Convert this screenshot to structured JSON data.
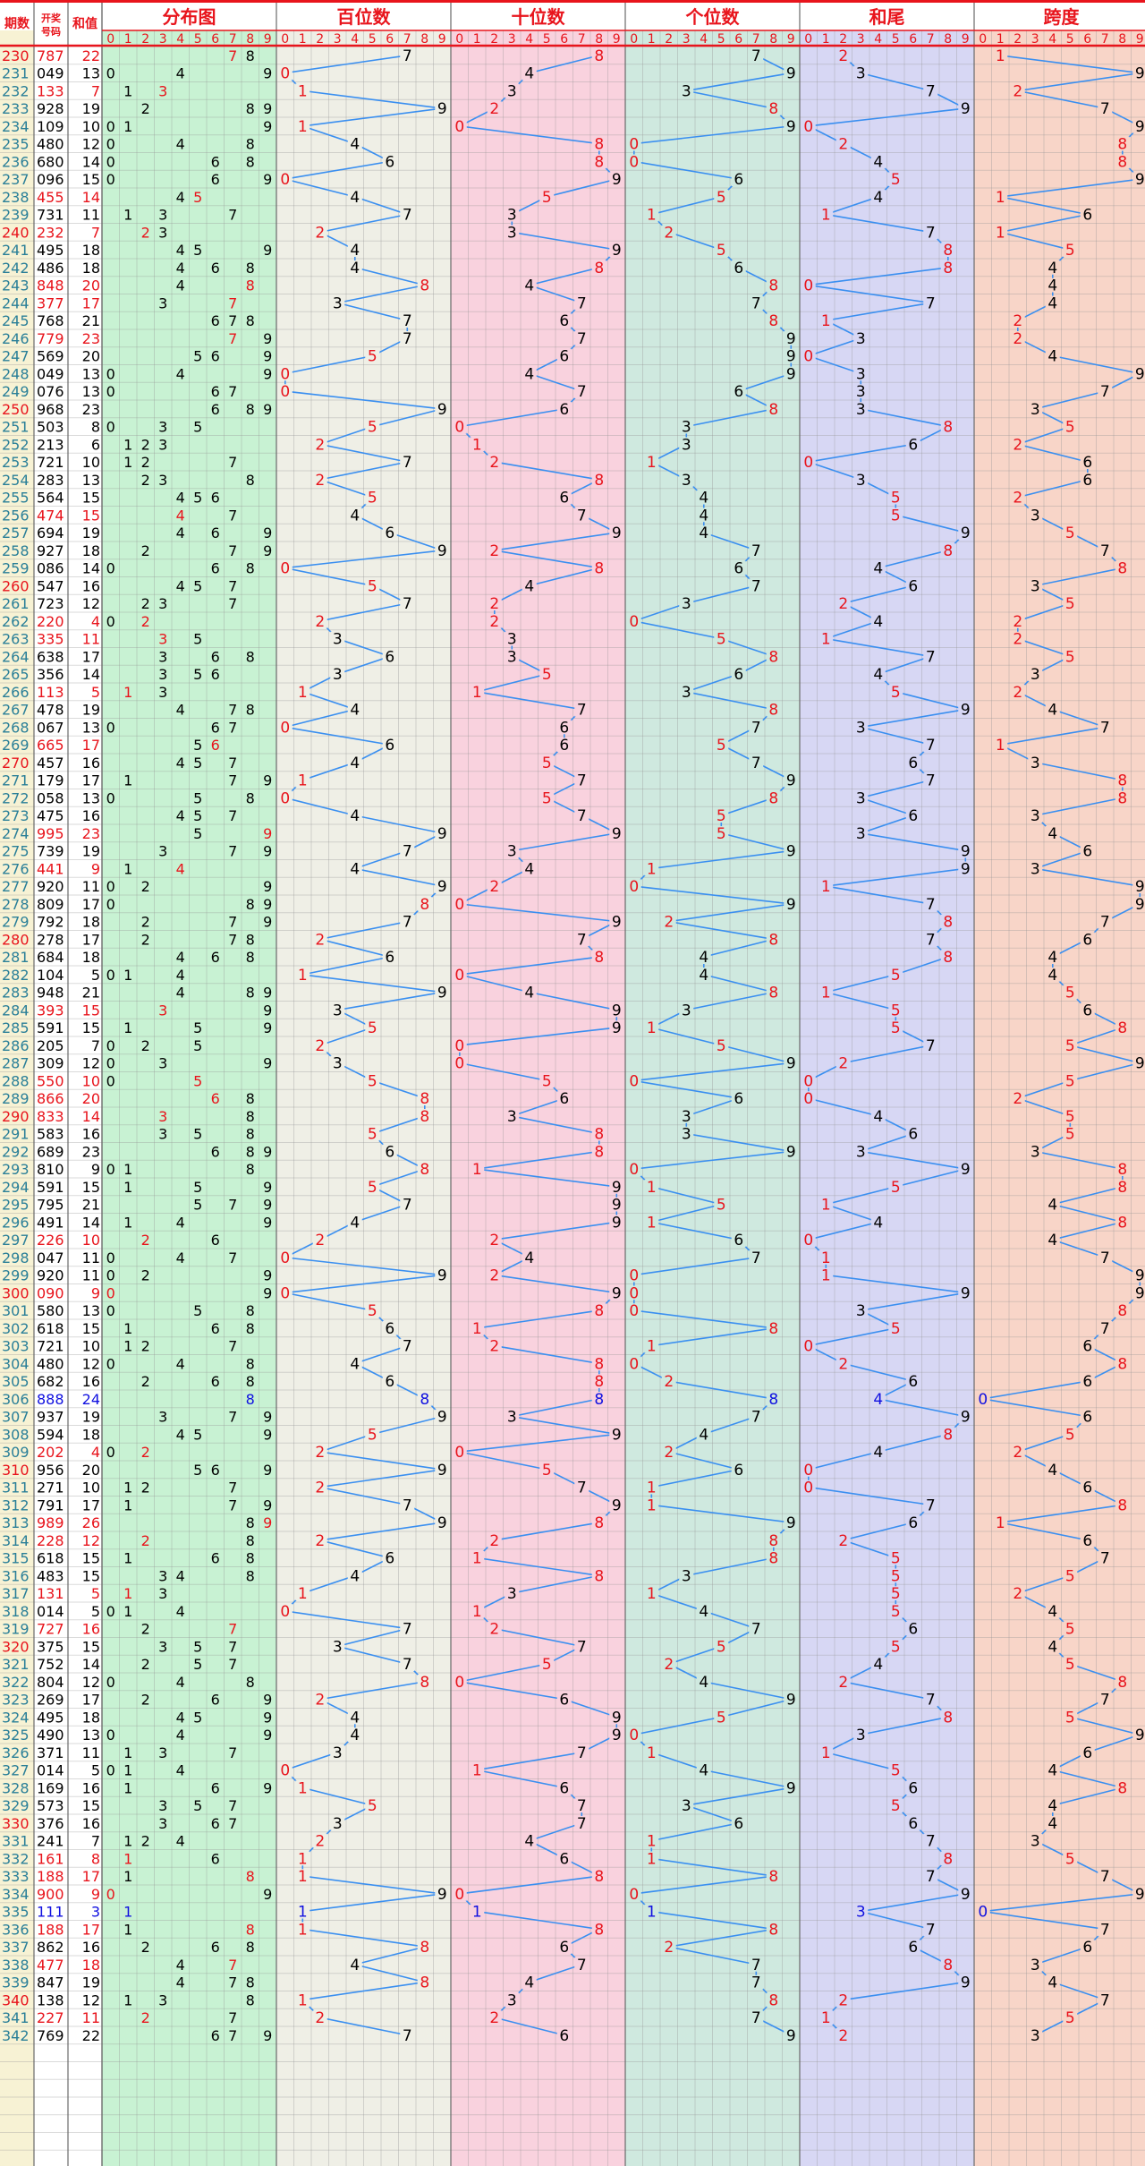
{
  "header": {
    "col_issue": "期数",
    "col_number_l1": "开奖",
    "col_number_l2": "号码",
    "col_sum": "和值",
    "sections": [
      "分布图",
      "百位数",
      "十位数",
      "个位数",
      "和尾",
      "跨度"
    ],
    "digits": [
      "0",
      "1",
      "2",
      "3",
      "4",
      "5",
      "6",
      "7",
      "8",
      "9"
    ]
  },
  "colors": {
    "issue_text": "#2a7f98",
    "highlight": "#e8141c",
    "blue_value": "#1010e0",
    "line": "#3a8ff0",
    "header_rule": "#e8141c",
    "sections_bg": [
      "#c8f2d3",
      "#efefe6",
      "#f9d2de",
      "#cfe9df",
      "#d7d7f4",
      "#f8d5c8"
    ],
    "left_bg": [
      "#f7f2d4",
      "#ffffff",
      "#ffffff"
    ]
  },
  "chart_data": {
    "type": "table",
    "title": "",
    "description_columns": [
      "期数",
      "开奖号码",
      "和值",
      "分布图",
      "百位数",
      "十位数",
      "个位数",
      "和尾",
      "跨度"
    ],
    "rows": [
      {
        "issue": "230",
        "number": "787",
        "sum": "22"
      },
      {
        "issue": "231",
        "number": "049",
        "sum": "13"
      },
      {
        "issue": "232",
        "number": "133",
        "sum": "7"
      },
      {
        "issue": "233",
        "number": "928",
        "sum": "19"
      },
      {
        "issue": "234",
        "number": "109",
        "sum": "10"
      },
      {
        "issue": "235",
        "number": "480",
        "sum": "12"
      },
      {
        "issue": "236",
        "number": "680",
        "sum": "14"
      },
      {
        "issue": "237",
        "number": "096",
        "sum": "15"
      },
      {
        "issue": "238",
        "number": "455",
        "sum": "14"
      },
      {
        "issue": "239",
        "number": "731",
        "sum": "11"
      },
      {
        "issue": "240",
        "number": "232",
        "sum": "7"
      },
      {
        "issue": "241",
        "number": "495",
        "sum": "18"
      },
      {
        "issue": "242",
        "number": "486",
        "sum": "18"
      },
      {
        "issue": "243",
        "number": "848",
        "sum": "20"
      },
      {
        "issue": "244",
        "number": "377",
        "sum": "17"
      },
      {
        "issue": "245",
        "number": "768",
        "sum": "21"
      },
      {
        "issue": "246",
        "number": "779",
        "sum": "23"
      },
      {
        "issue": "247",
        "number": "569",
        "sum": "20"
      },
      {
        "issue": "248",
        "number": "049",
        "sum": "13"
      },
      {
        "issue": "249",
        "number": "076",
        "sum": "13"
      },
      {
        "issue": "250",
        "number": "968",
        "sum": "23"
      },
      {
        "issue": "251",
        "number": "503",
        "sum": "8"
      },
      {
        "issue": "252",
        "number": "213",
        "sum": "6"
      },
      {
        "issue": "253",
        "number": "721",
        "sum": "10"
      },
      {
        "issue": "254",
        "number": "283",
        "sum": "13"
      },
      {
        "issue": "255",
        "number": "564",
        "sum": "15"
      },
      {
        "issue": "256",
        "number": "474",
        "sum": "15"
      },
      {
        "issue": "257",
        "number": "694",
        "sum": "19"
      },
      {
        "issue": "258",
        "number": "927",
        "sum": "18"
      },
      {
        "issue": "259",
        "number": "086",
        "sum": "14"
      },
      {
        "issue": "260",
        "number": "547",
        "sum": "16"
      },
      {
        "issue": "261",
        "number": "723",
        "sum": "12"
      },
      {
        "issue": "262",
        "number": "220",
        "sum": "4"
      },
      {
        "issue": "263",
        "number": "335",
        "sum": "11"
      },
      {
        "issue": "264",
        "number": "638",
        "sum": "17"
      },
      {
        "issue": "265",
        "number": "356",
        "sum": "14"
      },
      {
        "issue": "266",
        "number": "113",
        "sum": "5"
      },
      {
        "issue": "267",
        "number": "478",
        "sum": "19"
      },
      {
        "issue": "268",
        "number": "067",
        "sum": "13"
      },
      {
        "issue": "269",
        "number": "665",
        "sum": "17"
      },
      {
        "issue": "270",
        "number": "457",
        "sum": "16"
      },
      {
        "issue": "271",
        "number": "179",
        "sum": "17"
      },
      {
        "issue": "272",
        "number": "058",
        "sum": "13"
      },
      {
        "issue": "273",
        "number": "475",
        "sum": "16"
      },
      {
        "issue": "274",
        "number": "995",
        "sum": "23"
      },
      {
        "issue": "275",
        "number": "739",
        "sum": "19"
      },
      {
        "issue": "276",
        "number": "441",
        "sum": "9"
      },
      {
        "issue": "277",
        "number": "920",
        "sum": "11"
      },
      {
        "issue": "278",
        "number": "809",
        "sum": "17"
      },
      {
        "issue": "279",
        "number": "792",
        "sum": "18"
      },
      {
        "issue": "280",
        "number": "278",
        "sum": "17"
      },
      {
        "issue": "281",
        "number": "684",
        "sum": "18"
      },
      {
        "issue": "282",
        "number": "104",
        "sum": "5"
      },
      {
        "issue": "283",
        "number": "948",
        "sum": "21"
      },
      {
        "issue": "284",
        "number": "393",
        "sum": "15"
      },
      {
        "issue": "285",
        "number": "591",
        "sum": "15"
      },
      {
        "issue": "286",
        "number": "205",
        "sum": "7"
      },
      {
        "issue": "287",
        "number": "309",
        "sum": "12"
      },
      {
        "issue": "288",
        "number": "550",
        "sum": "10"
      },
      {
        "issue": "289",
        "number": "866",
        "sum": "20"
      },
      {
        "issue": "290",
        "number": "833",
        "sum": "14"
      },
      {
        "issue": "291",
        "number": "583",
        "sum": "16"
      },
      {
        "issue": "292",
        "number": "689",
        "sum": "23"
      },
      {
        "issue": "293",
        "number": "810",
        "sum": "9"
      },
      {
        "issue": "294",
        "number": "591",
        "sum": "15"
      },
      {
        "issue": "295",
        "number": "795",
        "sum": "21"
      },
      {
        "issue": "296",
        "number": "491",
        "sum": "14"
      },
      {
        "issue": "297",
        "number": "226",
        "sum": "10"
      },
      {
        "issue": "298",
        "number": "047",
        "sum": "11"
      },
      {
        "issue": "299",
        "number": "920",
        "sum": "11"
      },
      {
        "issue": "300",
        "number": "090",
        "sum": "9"
      },
      {
        "issue": "301",
        "number": "580",
        "sum": "13"
      },
      {
        "issue": "302",
        "number": "618",
        "sum": "15"
      },
      {
        "issue": "303",
        "number": "721",
        "sum": "10"
      },
      {
        "issue": "304",
        "number": "480",
        "sum": "12"
      },
      {
        "issue": "305",
        "number": "682",
        "sum": "16"
      },
      {
        "issue": "306",
        "number": "888",
        "sum": "24"
      },
      {
        "issue": "307",
        "number": "937",
        "sum": "19"
      },
      {
        "issue": "308",
        "number": "594",
        "sum": "18"
      },
      {
        "issue": "309",
        "number": "202",
        "sum": "4"
      },
      {
        "issue": "310",
        "number": "956",
        "sum": "20"
      },
      {
        "issue": "311",
        "number": "271",
        "sum": "10"
      },
      {
        "issue": "312",
        "number": "791",
        "sum": "17"
      },
      {
        "issue": "313",
        "number": "989",
        "sum": "26"
      },
      {
        "issue": "314",
        "number": "228",
        "sum": "12"
      },
      {
        "issue": "315",
        "number": "618",
        "sum": "15"
      },
      {
        "issue": "316",
        "number": "483",
        "sum": "15"
      },
      {
        "issue": "317",
        "number": "131",
        "sum": "5"
      },
      {
        "issue": "318",
        "number": "014",
        "sum": "5"
      },
      {
        "issue": "319",
        "number": "727",
        "sum": "16"
      },
      {
        "issue": "320",
        "number": "375",
        "sum": "15"
      },
      {
        "issue": "321",
        "number": "752",
        "sum": "14"
      },
      {
        "issue": "322",
        "number": "804",
        "sum": "12"
      },
      {
        "issue": "323",
        "number": "269",
        "sum": "17"
      },
      {
        "issue": "324",
        "number": "495",
        "sum": "18"
      },
      {
        "issue": "325",
        "number": "490",
        "sum": "13"
      },
      {
        "issue": "326",
        "number": "371",
        "sum": "11"
      },
      {
        "issue": "327",
        "number": "014",
        "sum": "5"
      },
      {
        "issue": "328",
        "number": "169",
        "sum": "16"
      },
      {
        "issue": "329",
        "number": "573",
        "sum": "15"
      },
      {
        "issue": "330",
        "number": "376",
        "sum": "16"
      },
      {
        "issue": "331",
        "number": "241",
        "sum": "7"
      },
      {
        "issue": "332",
        "number": "161",
        "sum": "8"
      },
      {
        "issue": "333",
        "number": "188",
        "sum": "17"
      },
      {
        "issue": "334",
        "number": "900",
        "sum": "9"
      },
      {
        "issue": "335",
        "number": "111",
        "sum": "3"
      },
      {
        "issue": "336",
        "number": "188",
        "sum": "17"
      },
      {
        "issue": "337",
        "number": "862",
        "sum": "16"
      },
      {
        "issue": "338",
        "number": "477",
        "sum": "18"
      },
      {
        "issue": "339",
        "number": "847",
        "sum": "19"
      },
      {
        "issue": "340",
        "number": "138",
        "sum": "12"
      },
      {
        "issue": "341",
        "number": "227",
        "sum": "11"
      },
      {
        "issue": "342",
        "number": "769",
        "sum": "22"
      }
    ]
  }
}
